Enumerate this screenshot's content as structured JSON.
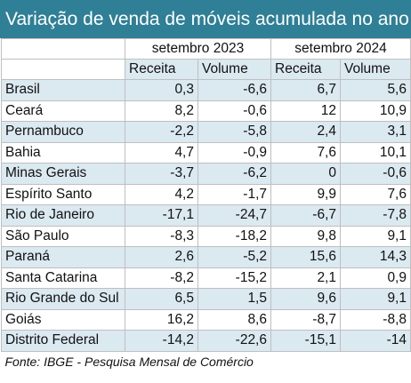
{
  "title": "Variação de venda de móveis acumulada no ano",
  "periods": [
    "setembro 2023",
    "setembro 2024"
  ],
  "subheaders": [
    "Receita",
    "Volume",
    "Receita",
    "Volume"
  ],
  "rows": [
    {
      "state": "Brasil",
      "v": [
        "0,3",
        "-6,6",
        "6,7",
        "5,6"
      ]
    },
    {
      "state": "Ceará",
      "v": [
        "8,2",
        "-0,6",
        "12",
        "10,9"
      ]
    },
    {
      "state": "Pernambuco",
      "v": [
        "-2,2",
        "-5,8",
        "2,4",
        "3,1"
      ]
    },
    {
      "state": "Bahia",
      "v": [
        "4,7",
        "-0,9",
        "7,6",
        "10,1"
      ]
    },
    {
      "state": "Minas Gerais",
      "v": [
        "-3,7",
        "-6,2",
        "0",
        "-0,6"
      ]
    },
    {
      "state": "Espírito Santo",
      "v": [
        "4,2",
        "-1,7",
        "9,9",
        "7,6"
      ]
    },
    {
      "state": "Rio de Janeiro",
      "v": [
        "-17,1",
        "-24,7",
        "-6,7",
        "-7,8"
      ]
    },
    {
      "state": "São Paulo",
      "v": [
        "-8,3",
        "-18,2",
        "9,8",
        "9,1"
      ]
    },
    {
      "state": "Paraná",
      "v": [
        "2,6",
        "-5,2",
        "15,6",
        "14,3"
      ]
    },
    {
      "state": "Santa Catarina",
      "v": [
        "-8,2",
        "-15,2",
        "2,1",
        "0,9"
      ]
    },
    {
      "state": "Rio Grande do Sul",
      "v": [
        "6,5",
        "1,5",
        "9,6",
        "9,1"
      ]
    },
    {
      "state": "Goiás",
      "v": [
        "16,2",
        "8,6",
        "-8,7",
        "-8,8"
      ]
    },
    {
      "state": "Distrito Federal",
      "v": [
        "-14,2",
        "-22,6",
        "-15,1",
        "-14"
      ]
    }
  ],
  "source": "Fonte: IBGE - Pesquisa Mensal de Comércio",
  "colors": {
    "header_bg": "#2f7f96",
    "band": "#dbe9f1",
    "grid": "#bfbfbf"
  }
}
